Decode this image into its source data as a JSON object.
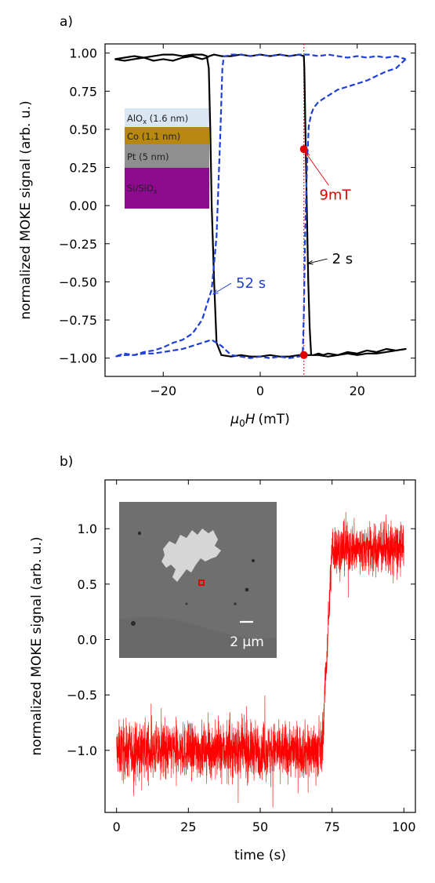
{
  "chart_data": [
    {
      "type": "line",
      "panel_label": "a)",
      "xlabel_prefix": "μ",
      "xlabel_sub": "0",
      "xlabel_main": "H",
      "xlabel_unit": "(mT)",
      "ylabel": "normalized MOKE signal (arb. u.)",
      "xlim": [
        -32,
        32
      ],
      "ylim": [
        -1.12,
        1.06
      ],
      "xticks": [
        -20,
        0,
        20
      ],
      "xtick_labels": [
        "−20",
        "0",
        "20"
      ],
      "yticks": [
        1.0,
        0.75,
        0.5,
        0.25,
        0.0,
        -0.25,
        -0.5,
        -0.75,
        -1.0
      ],
      "ytick_labels": [
        "1.00",
        "0.75",
        "0.50",
        "0.25",
        "0.00",
        "−0.25",
        "−0.50",
        "−0.75",
        "−1.00"
      ],
      "series": [
        {
          "name": "2 s",
          "color": "#000000",
          "style": "solid",
          "x": [
            -30,
            -28,
            -26,
            -24,
            -22,
            -20,
            -18,
            -16,
            -14,
            -12,
            -11,
            -10.6,
            -10.3,
            -10,
            -9.5,
            -9,
            -8,
            -6,
            -4,
            -2,
            0,
            2,
            4,
            6,
            8,
            9,
            9.5,
            10,
            11,
            12,
            13,
            14,
            16,
            18,
            20,
            22,
            24,
            26,
            28,
            30,
            28,
            26,
            24,
            22,
            20,
            18,
            16,
            14,
            12,
            10.5,
            10.2,
            9.9,
            9.6,
            9.3,
            9.1,
            9,
            8,
            6,
            4,
            2,
            0,
            -2,
            -4,
            -6,
            -8,
            -9.5,
            -10.5,
            -11,
            -12,
            -14,
            -16,
            -18,
            -20,
            -22,
            -24,
            -26,
            -28,
            -30
          ],
          "y": [
            0.96,
            0.97,
            0.98,
            0.97,
            0.98,
            0.99,
            0.99,
            0.98,
            0.99,
            0.99,
            0.98,
            0.9,
            0.5,
            0.0,
            -0.5,
            -0.9,
            -0.98,
            -0.99,
            -0.98,
            -0.99,
            -0.99,
            -0.98,
            -0.99,
            -0.99,
            -0.98,
            -0.98,
            -0.98,
            -0.98,
            -0.98,
            -0.97,
            -0.98,
            -0.97,
            -0.98,
            -0.96,
            -0.97,
            -0.95,
            -0.96,
            -0.94,
            -0.95,
            -0.94,
            -0.95,
            -0.96,
            -0.97,
            -0.97,
            -0.98,
            -0.97,
            -0.98,
            -0.99,
            -0.98,
            -0.98,
            -0.8,
            -0.5,
            0.0,
            0.55,
            0.9,
            0.98,
            0.99,
            0.98,
            0.99,
            0.98,
            0.99,
            0.98,
            0.99,
            0.98,
            0.98,
            0.99,
            0.98,
            0.97,
            0.96,
            0.98,
            0.97,
            0.95,
            0.96,
            0.95,
            0.97,
            0.96,
            0.95,
            0.96
          ]
        },
        {
          "name": "52 s",
          "color": "#1f3fd6",
          "style": "dashed",
          "x": [
            30,
            28,
            26,
            24,
            22,
            20,
            18,
            16,
            14,
            12,
            11,
            10.5,
            10,
            9.7,
            9.4,
            9.2,
            9,
            8.8,
            8.5,
            8,
            6,
            4,
            2,
            0,
            -2,
            -4,
            -6,
            -8,
            -10,
            -12,
            -14,
            -16,
            -18,
            -20,
            -22,
            -24,
            -26,
            -28,
            -30,
            -28,
            -26,
            -24,
            -22,
            -20,
            -18,
            -16,
            -14,
            -12,
            -10,
            -9,
            -8.2,
            -7.8,
            -7.5,
            -7,
            -6,
            -4,
            -2,
            0,
            2,
            4,
            6,
            8,
            10,
            12,
            14,
            16,
            18,
            20,
            22,
            24,
            26,
            28,
            30
          ],
          "y": [
            0.96,
            0.9,
            0.88,
            0.85,
            0.82,
            0.8,
            0.78,
            0.76,
            0.72,
            0.68,
            0.64,
            0.6,
            0.52,
            0.3,
            0.0,
            -0.3,
            -0.7,
            -0.95,
            -0.98,
            -0.99,
            -1.0,
            -0.99,
            -1.0,
            -0.99,
            -1.0,
            -0.99,
            -0.98,
            -0.92,
            -0.88,
            -0.9,
            -0.92,
            -0.94,
            -0.95,
            -0.96,
            -0.97,
            -0.97,
            -0.98,
            -0.98,
            -0.99,
            -0.97,
            -0.98,
            -0.96,
            -0.95,
            -0.93,
            -0.9,
            -0.88,
            -0.84,
            -0.75,
            -0.55,
            -0.2,
            0.5,
            0.9,
            0.98,
            0.98,
            0.99,
            0.99,
            0.98,
            0.99,
            0.98,
            0.99,
            0.98,
            0.99,
            0.99,
            0.98,
            0.99,
            0.98,
            0.97,
            0.98,
            0.97,
            0.98,
            0.97,
            0.98,
            0.96
          ]
        }
      ],
      "vline": {
        "x": 9,
        "color": "#e00000",
        "style": "dotted"
      },
      "markers": [
        {
          "x": 9,
          "y": 0.37,
          "color": "#e00000"
        },
        {
          "x": 9,
          "y": -0.98,
          "color": "#e00000"
        }
      ],
      "annotations": [
        {
          "text": "9mT",
          "color": "#e00000",
          "text_x": 12.2,
          "text_y": 0.04,
          "tip_x": 9.3,
          "tip_y": 0.35
        },
        {
          "text": "2 s",
          "color": "#000000",
          "text_x": 14.8,
          "text_y": -0.38,
          "tip_x": 9.8,
          "tip_y": -0.38
        },
        {
          "text": "52 s",
          "color": "#1f3fd6",
          "text_x": -5,
          "text_y": -0.54,
          "tip_x": -9.7,
          "tip_y": -0.58
        }
      ],
      "inset_layers": [
        {
          "label": "AlOx (1.6 nm)",
          "label_main": "AlO",
          "label_sub": "x",
          "label_rest": " (1.6 nm)",
          "color": "#dbe6f3"
        },
        {
          "label": "Co (1.1 nm)",
          "label_main": "Co (1.1 nm)",
          "label_sub": "",
          "label_rest": "",
          "color": "#b8870f"
        },
        {
          "label": "Pt (5 nm)",
          "label_main": "Pt (5 nm)",
          "label_sub": "",
          "label_rest": "",
          "color": "#8f8f8f"
        },
        {
          "label": "Si/SiOx",
          "label_main": "Si/SiO",
          "label_sub": "x",
          "label_rest": "",
          "color": "#8e0a8e"
        }
      ]
    },
    {
      "type": "line",
      "panel_label": "b)",
      "xlabel": "time (s)",
      "ylabel": "normalized MOKE signal (arb. u.)",
      "xlim": [
        -4,
        104
      ],
      "ylim": [
        -1.56,
        1.44
      ],
      "xticks": [
        0,
        25,
        50,
        75,
        100
      ],
      "xtick_labels": [
        "0",
        "25",
        "50",
        "75",
        "100"
      ],
      "yticks": [
        1.0,
        0.5,
        0.0,
        -0.5,
        -1.0
      ],
      "ytick_labels": [
        "1.0",
        "0.5",
        "0.0",
        "−0.5",
        "−1.0"
      ],
      "series": [
        {
          "name": "",
          "color": "#ff0000",
          "segments": [
            {
              "x_start": 0,
              "x_end": 71.5,
              "mean": -1.0,
              "noise_amplitude": 0.22
            },
            {
              "x_start": 71.5,
              "x_end": 75,
              "mean_start": -1.0,
              "mean_end": 0.82,
              "noise_amplitude": 0.18
            },
            {
              "x_start": 75,
              "x_end": 100,
              "mean": 0.82,
              "noise_amplitude": 0.2
            }
          ]
        }
      ],
      "inset_image": {
        "description_label": "2 μm",
        "scalebar_text": "2 μm",
        "background_color": "#6f6f6f",
        "domain_color": "#d8d8d8",
        "marker_color": "#e00000"
      }
    }
  ]
}
